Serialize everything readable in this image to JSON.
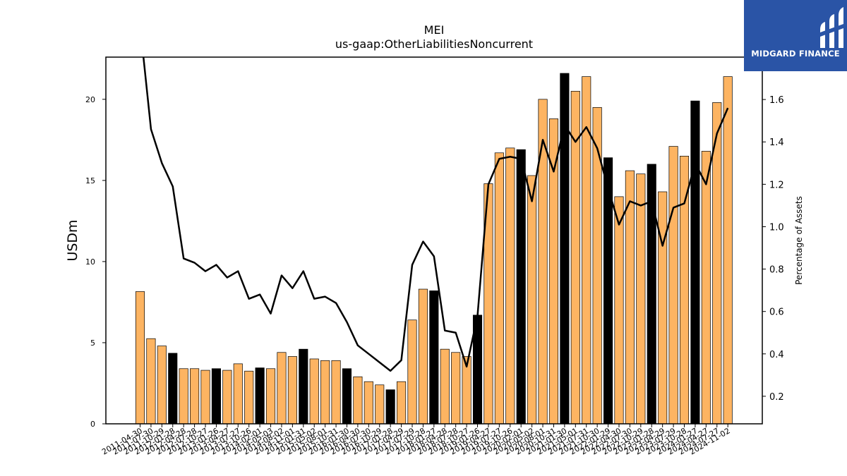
{
  "chart_data": {
    "type": "bar",
    "title": "MEI",
    "subtitle": "us-gaap:OtherLiabilitiesNoncurrent",
    "ylabel": "USDm",
    "y2label": "Percentage of Assets",
    "ylim": [
      0,
      22.6
    ],
    "y2lim": [
      0.07,
      1.8
    ],
    "yticks": [
      0,
      5,
      10,
      15,
      20
    ],
    "y2ticks": [
      0.2,
      0.4,
      0.6,
      0.8,
      1.0,
      1.2,
      1.4,
      1.6
    ],
    "y2tick_labels": [
      "0.2",
      "0.4",
      "0.6",
      "0.8",
      "1.0",
      "1.2",
      "1.4",
      "1.6"
    ],
    "grid": false,
    "bar_colors": {
      "quarterly": "#fdb462",
      "annual": "#000000"
    },
    "line_color": "#000000",
    "categories": [
      "2011-04-30",
      "2011-07-30",
      "2011-10-29",
      "2012-01-28",
      "2012-04-28",
      "2012-07-28",
      "2012-10-27",
      "2013-01-26",
      "2013-04-27",
      "2013-07-27",
      "2013-10-26",
      "2014-02-01",
      "2014-05-03",
      "2014-08-02",
      "2014-11-01",
      "2015-01-31",
      "2015-05-02",
      "2015-08-01",
      "2015-10-31",
      "2016-01-30",
      "2016-04-30",
      "2016-07-30",
      "2016-10-29",
      "2017-01-28",
      "2017-04-29",
      "2017-07-29",
      "2017-10-28",
      "2018-01-27",
      "2018-04-28",
      "2018-07-28",
      "2018-10-27",
      "2019-01-26",
      "2019-04-27",
      "2019-07-27",
      "2019-10-26",
      "2020-02-01",
      "2020-05-02",
      "2020-08-01",
      "2020-10-31",
      "2021-01-30",
      "2021-05-01",
      "2021-07-31",
      "2021-10-30",
      "2022-01-29",
      "2022-04-30",
      "2022-07-30",
      "2022-10-29",
      "2023-01-28",
      "2023-04-29",
      "2023-07-29",
      "2023-10-28",
      "2024-01-27",
      "2024-04-27",
      "2024-07-27",
      "2024-11-02"
    ],
    "tick_labels": [
      "2011-04-30",
      "2011-07-30",
      "2011-10-29",
      "2012-01-28",
      "2012-04-28",
      "2012-07-28",
      "2012-10-27",
      "2013-01-26",
      "2013-04-27",
      "2013-07-27",
      "2013-10-26",
      "2014-02-01",
      "2014-05-03",
      "2014-08-02",
      "2014-11-01",
      "2015-01-31",
      "2015-05-02",
      "2015-08-01",
      "2015-10-31",
      "2016-01-30",
      "2016-04-30",
      "2016-07-30",
      "2016-10-29",
      "2017-01-28",
      "2017-04-29",
      "2017-07-29",
      "2017-10-28",
      "2018-01-27",
      "2018-04-28",
      "2018-07-28",
      "2018-10-27",
      "2019-01-26",
      "2019-04-27",
      "2019-07-27",
      "2019-10-26",
      "2020-02-01",
      "2020-05-02",
      "2020-08-01",
      "2020-10-31",
      "2021-01-30",
      "2021-05-01",
      "2021-07-31",
      "2021-10-30",
      "2022-01-29",
      "2022-04-30",
      "2022-07-30",
      "2022-10-29",
      "2023-01-28",
      "2023-04-29",
      "2023-07-29",
      "2023-10-28",
      "2024-01-27",
      "2024-04-27",
      "2024-07-27",
      "2024-11-02"
    ],
    "values": [
      8.15,
      5.25,
      4.8,
      4.35,
      3.4,
      3.4,
      3.3,
      3.4,
      3.3,
      3.7,
      3.25,
      3.45,
      3.4,
      4.4,
      4.15,
      4.6,
      4.0,
      3.9,
      3.9,
      3.4,
      2.9,
      2.6,
      2.4,
      2.1,
      2.6,
      6.4,
      8.3,
      8.2,
      4.6,
      4.4,
      4.15,
      6.7,
      14.8,
      16.7,
      17.0,
      16.9,
      15.3,
      20.0,
      18.8,
      21.6,
      20.5,
      21.4,
      19.5,
      16.4,
      14.0,
      15.6,
      15.4,
      16.0,
      14.3,
      17.1,
      16.5,
      19.9,
      16.8,
      19.8,
      21.4
    ],
    "annual": [
      false,
      false,
      false,
      true,
      false,
      false,
      false,
      true,
      false,
      false,
      false,
      true,
      false,
      false,
      false,
      true,
      false,
      false,
      false,
      true,
      false,
      false,
      false,
      true,
      false,
      false,
      false,
      true,
      false,
      false,
      false,
      true,
      false,
      false,
      false,
      true,
      false,
      false,
      false,
      true,
      false,
      false,
      false,
      true,
      false,
      false,
      false,
      true,
      false,
      false,
      false,
      true,
      false,
      false,
      false
    ],
    "pct_of_assets": [
      1.95,
      1.46,
      1.3,
      1.19,
      0.85,
      0.83,
      0.79,
      0.82,
      0.76,
      0.79,
      0.66,
      0.68,
      0.59,
      0.77,
      0.71,
      0.79,
      0.66,
      0.67,
      0.64,
      0.55,
      0.44,
      0.4,
      0.36,
      0.32,
      0.37,
      0.82,
      0.93,
      0.86,
      0.51,
      0.5,
      0.34,
      0.58,
      1.2,
      1.32,
      1.33,
      1.32,
      1.12,
      1.41,
      1.26,
      1.48,
      1.4,
      1.47,
      1.37,
      1.18,
      1.01,
      1.12,
      1.1,
      1.12,
      0.91,
      1.09,
      1.11,
      1.3,
      1.2,
      1.44,
      1.56
    ]
  },
  "logo": {
    "text": "MIDGARD FINANCE",
    "bg": "#2a54a6"
  }
}
